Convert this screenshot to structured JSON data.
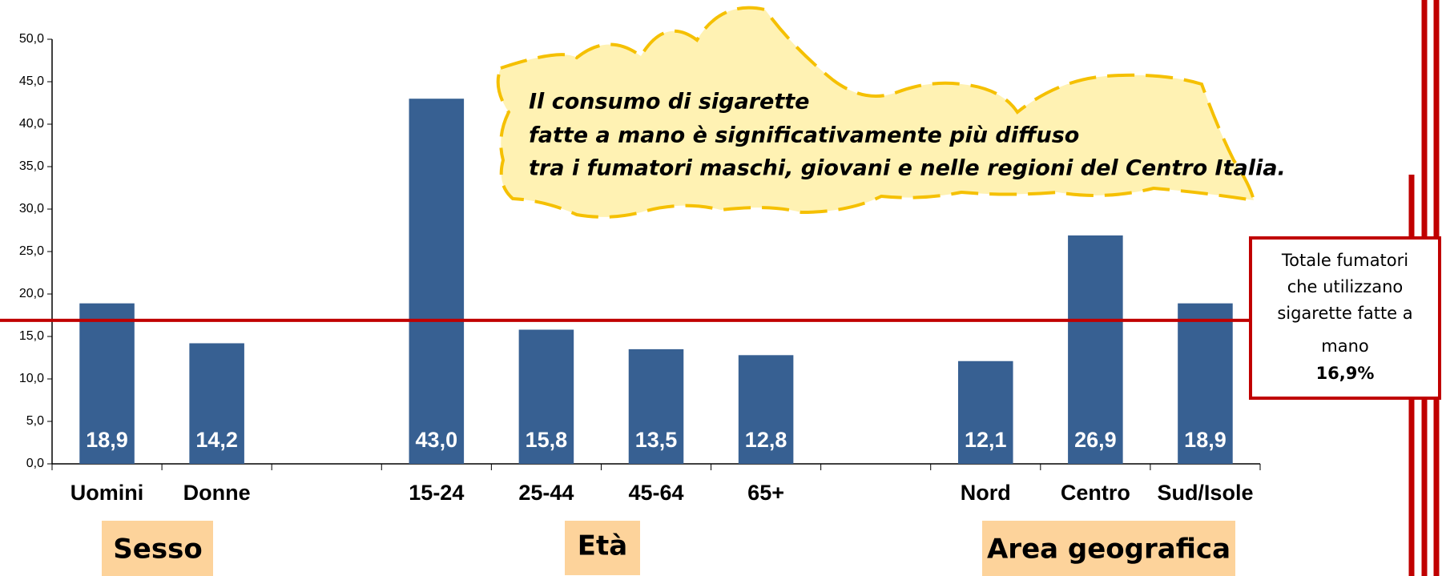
{
  "chart_data": {
    "type": "bar",
    "categories": [
      "Uomini",
      "Donne",
      null,
      "15-24",
      "25-44",
      "45-64",
      "65+",
      null,
      "Nord",
      "Centro",
      "Sud/Isole"
    ],
    "values": [
      18.9,
      14.2,
      null,
      43.0,
      15.8,
      13.5,
      12.8,
      null,
      12.1,
      26.9,
      18.9
    ],
    "value_labels": [
      "18,9",
      "14,2",
      null,
      "43,0",
      "15,8",
      "13,5",
      "12,8",
      null,
      "12,1",
      "26,9",
      "18,9"
    ],
    "color": "#376092",
    "ylim": [
      0,
      50
    ],
    "yticks": [
      {
        "value": 0,
        "label": "0,0"
      },
      {
        "value": 5,
        "label": "5,0"
      },
      {
        "value": 10,
        "label": "10,0"
      },
      {
        "value": 15,
        "label": "15,0"
      },
      {
        "value": 20,
        "label": "20,0"
      },
      {
        "value": 25,
        "label": "25,0"
      },
      {
        "value": 30,
        "label": "30,0"
      },
      {
        "value": 35,
        "label": "35,0"
      },
      {
        "value": 40,
        "label": "40,0"
      },
      {
        "value": 45,
        "label": "45,0"
      },
      {
        "value": 50,
        "label": "50,0"
      }
    ],
    "grid": false,
    "groups": [
      "Sesso",
      "Età",
      "Area geografica"
    ],
    "annotation": [
      "Il consumo di sigarette",
      "fatte a mano è significativamente più diffuso",
      "tra i fumatori maschi, giovani e nelle regioni del Centro Italia."
    ],
    "reference": {
      "value": 16.9,
      "label": "16,9%",
      "color": "#c00000",
      "text": [
        "Totale fumatori",
        "che utilizzano",
        "sigarette fatte a",
        "mano"
      ]
    }
  }
}
